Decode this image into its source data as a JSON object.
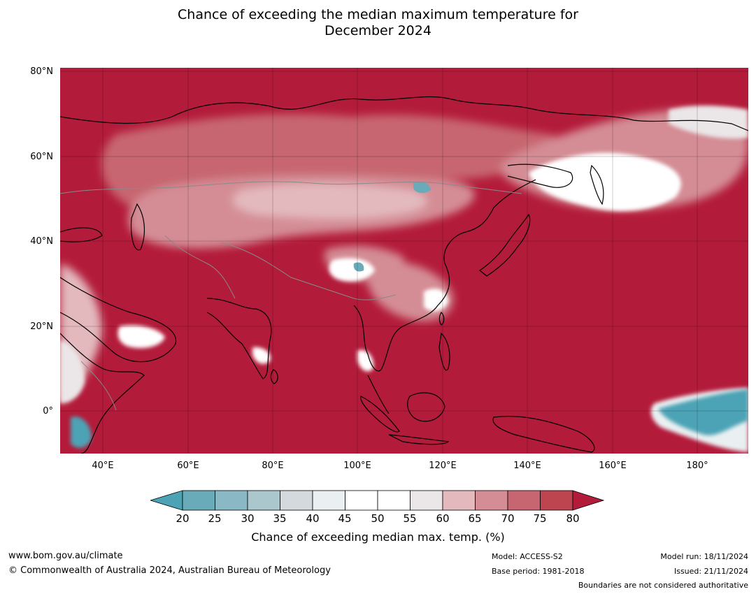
{
  "title_line1": "Chance of exceeding the median maximum temperature for",
  "title_line2": "December 2024",
  "lat_labels": [
    "80°N",
    "60°N",
    "40°N",
    "20°N",
    "0°"
  ],
  "lon_labels": [
    "40°E",
    "60°E",
    "80°E",
    "100°E",
    "120°E",
    "140°E",
    "160°E",
    "180°"
  ],
  "colorbar": {
    "ticks": [
      "20",
      "25",
      "30",
      "35",
      "40",
      "45",
      "50",
      "55",
      "60",
      "65",
      "70",
      "75",
      "80"
    ],
    "label": "Chance of exceeding median max. temp. (%)",
    "colors": [
      "#4ba3b5",
      "#6aabb9",
      "#8ab8c5",
      "#aac7ce",
      "#d3d9dc",
      "#eaf0f2",
      "#ffffff",
      "#ffffff",
      "#ebe6e7",
      "#e3b9be",
      "#d48d95",
      "#c76670",
      "#bd4550",
      "#b31b3a"
    ]
  },
  "colors": {
    "ocean_land_high": "#b31b3a",
    "low": "#4ba3b5",
    "neutral": "#ffffff"
  },
  "footer": {
    "website": "www.bom.gov.au/climate",
    "copyright": "© Commonwealth of Australia 2024, Australian Bureau of Meteorology",
    "model": "Model: ACCESS-S2",
    "base_period": "Base period: 1981-2018",
    "model_run": "Model run: 18/11/2024",
    "issued": "Issued: 21/11/2024",
    "disclaimer": "Boundaries are not considered authoritative"
  }
}
